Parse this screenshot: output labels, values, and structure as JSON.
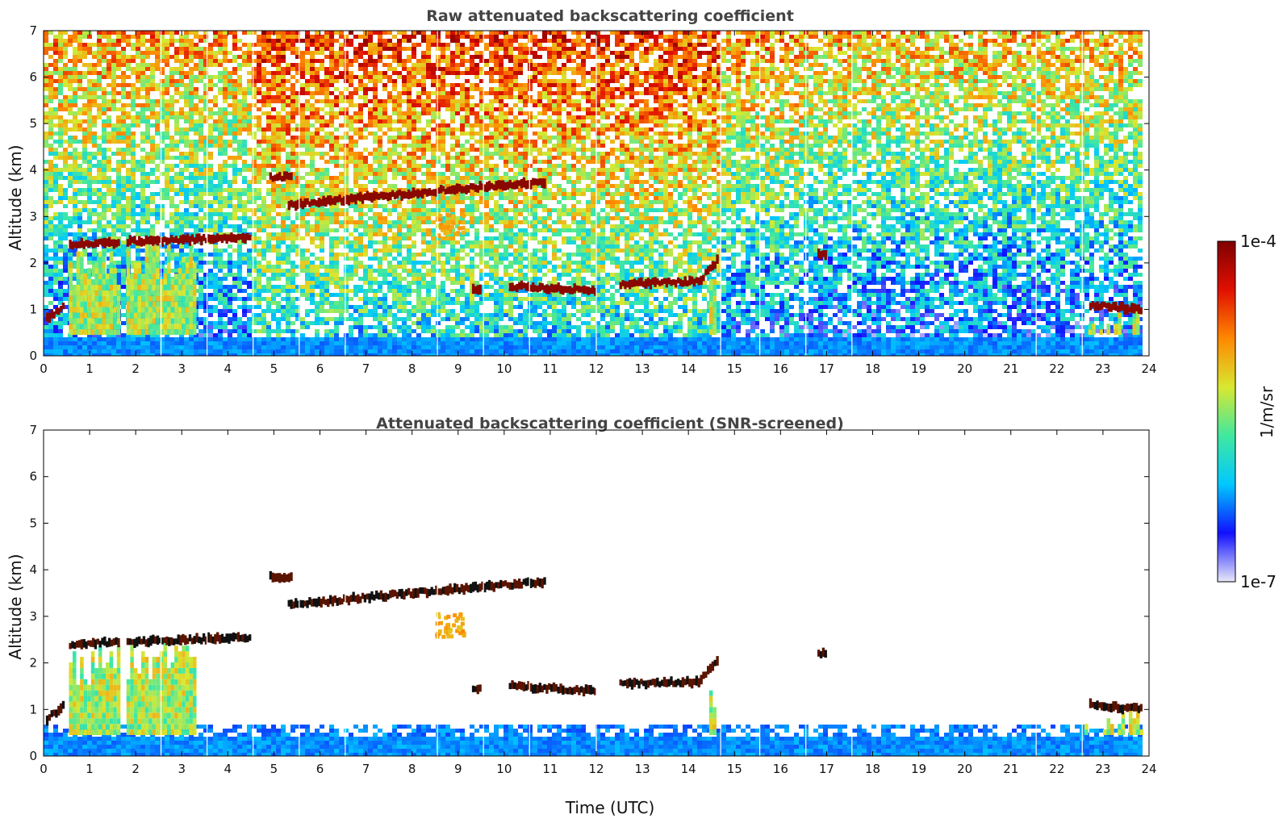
{
  "chart_data": [
    {
      "type": "heatmap",
      "title": "Raw attenuated backscattering coefficient",
      "ylabel": "Altitude (km)",
      "xlabel": "",
      "xlim": [
        0,
        24
      ],
      "ylim": [
        0,
        7
      ],
      "xticks": [
        "0",
        "1",
        "2",
        "3",
        "4",
        "5",
        "6",
        "7",
        "8",
        "9",
        "10",
        "11",
        "12",
        "13",
        "14",
        "15",
        "16",
        "17",
        "18",
        "19",
        "20",
        "21",
        "22",
        "23",
        "24"
      ],
      "yticks": [
        "0",
        "1",
        "2",
        "3",
        "4",
        "5",
        "6",
        "7"
      ],
      "screened": false,
      "cloud_layers": [
        {
          "t0": 0.05,
          "t1": 0.45,
          "alt0": 0.8,
          "alt1": 1.1
        },
        {
          "t0": 0.55,
          "t1": 1.65,
          "alt0": 2.4,
          "alt1": 2.45
        },
        {
          "t0": 1.8,
          "t1": 4.5,
          "alt0": 2.45,
          "alt1": 2.55
        },
        {
          "t0": 4.9,
          "t1": 5.4,
          "alt0": 3.85,
          "alt1": 3.85
        },
        {
          "t0": 5.3,
          "t1": 8.5,
          "alt0": 3.25,
          "alt1": 3.55
        },
        {
          "t0": 8.5,
          "t1": 10.9,
          "alt0": 3.55,
          "alt1": 3.75
        },
        {
          "t0": 9.3,
          "t1": 9.5,
          "alt0": 1.45,
          "alt1": 1.45
        },
        {
          "t0": 10.1,
          "t1": 12.0,
          "alt0": 1.5,
          "alt1": 1.4
        },
        {
          "t0": 12.5,
          "t1": 14.3,
          "alt0": 1.55,
          "alt1": 1.6
        },
        {
          "t0": 14.2,
          "t1": 14.65,
          "alt0": 1.6,
          "alt1": 2.1
        },
        {
          "t0": 16.8,
          "t1": 17.0,
          "alt0": 2.2,
          "alt1": 2.2
        },
        {
          "t0": 22.7,
          "t1": 23.85,
          "alt0": 1.1,
          "alt1": 1.0
        }
      ],
      "aerosol_patches": [
        {
          "t": 8.8,
          "alt": 2.85,
          "value": 1e-05
        }
      ]
    },
    {
      "type": "heatmap",
      "title": "Attenuated backscattering coefficient (SNR-screened)",
      "ylabel": "Altitude (km)",
      "xlabel": "Time (UTC)",
      "xlim": [
        0,
        24
      ],
      "ylim": [
        0,
        7
      ],
      "xticks": [
        "0",
        "1",
        "2",
        "3",
        "4",
        "5",
        "6",
        "7",
        "8",
        "9",
        "10",
        "11",
        "12",
        "13",
        "14",
        "15",
        "16",
        "17",
        "18",
        "19",
        "20",
        "21",
        "22",
        "23",
        "24"
      ],
      "yticks": [
        "0",
        "1",
        "2",
        "3",
        "4",
        "5",
        "6",
        "7"
      ],
      "screened": true,
      "cloud_layers": [
        {
          "t0": 0.05,
          "t1": 0.45,
          "alt0": 0.8,
          "alt1": 1.1
        },
        {
          "t0": 0.55,
          "t1": 1.65,
          "alt0": 2.4,
          "alt1": 2.45
        },
        {
          "t0": 1.8,
          "t1": 4.5,
          "alt0": 2.45,
          "alt1": 2.55
        },
        {
          "t0": 4.9,
          "t1": 5.4,
          "alt0": 3.85,
          "alt1": 3.85
        },
        {
          "t0": 5.3,
          "t1": 8.5,
          "alt0": 3.25,
          "alt1": 3.55
        },
        {
          "t0": 8.5,
          "t1": 10.9,
          "alt0": 3.55,
          "alt1": 3.75
        },
        {
          "t0": 9.3,
          "t1": 9.5,
          "alt0": 1.45,
          "alt1": 1.45
        },
        {
          "t0": 10.1,
          "t1": 12.0,
          "alt0": 1.5,
          "alt1": 1.4
        },
        {
          "t0": 12.5,
          "t1": 14.3,
          "alt0": 1.55,
          "alt1": 1.6
        },
        {
          "t0": 14.2,
          "t1": 14.65,
          "alt0": 1.6,
          "alt1": 2.1
        },
        {
          "t0": 16.8,
          "t1": 17.0,
          "alt0": 2.2,
          "alt1": 2.2
        },
        {
          "t0": 22.7,
          "t1": 23.85,
          "alt0": 1.1,
          "alt1": 1.0
        }
      ],
      "aerosol_patches": [
        {
          "t": 8.8,
          "alt": 2.85,
          "value": 1e-05
        }
      ]
    }
  ],
  "colorbar": {
    "label": "1/m/sr",
    "max_label": "1e-4",
    "min_label": "1e-7",
    "range": [
      1e-07,
      0.0001
    ],
    "scale": "log",
    "colormap": [
      "#e8e8f8",
      "#1010ff",
      "#00c8ff",
      "#40e8a0",
      "#d8e830",
      "#ff8800",
      "#e01000",
      "#800000"
    ]
  }
}
